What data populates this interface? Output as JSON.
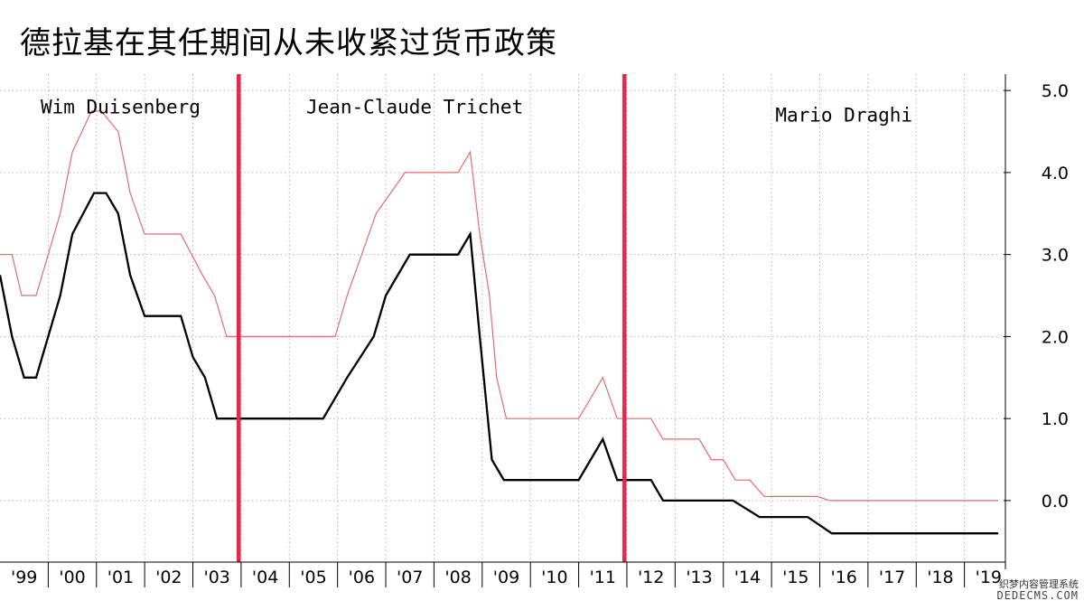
{
  "chart_data": {
    "type": "line",
    "title": "德拉基在其任期间从未收紧过货币政策",
    "xlabel": "",
    "ylabel": "",
    "x_tick_labels": [
      "'99",
      "'00",
      "'01",
      "'02",
      "'03",
      "'04",
      "'05",
      "'06",
      "'07",
      "'08",
      "'09",
      "'10",
      "'11",
      "'12",
      "'13",
      "'14",
      "'15",
      "'16",
      "'17",
      "'18",
      "'19"
    ],
    "x_range": [
      1999.0,
      2019.7
    ],
    "y_ticks": [
      0,
      1,
      2,
      3,
      4,
      5
    ],
    "y_tick_labels": [
      "0.0",
      "1.0",
      "2.0",
      "3.0",
      "4.0",
      "5.0"
    ],
    "ylim": [
      -0.75,
      5.2
    ],
    "y_axis_side": "right",
    "grid": true,
    "legend": "none",
    "annotations": [
      {
        "text": "Wim Duisenberg",
        "x": 2001.5,
        "y": 4.8
      },
      {
        "text": "Jean-Claude Trichet",
        "x": 2007.6,
        "y": 4.8
      },
      {
        "text": "Mario Draghi",
        "x": 2016.5,
        "y": 4.7
      }
    ],
    "term_dividers": [
      {
        "x": 2003.95,
        "color": "#e8274b"
      },
      {
        "x": 2011.95,
        "color": "#e8274b"
      }
    ],
    "series": [
      {
        "color": "#e86a6a",
        "points": [
          [
            1999.0,
            3.0
          ],
          [
            1999.25,
            3.0
          ],
          [
            1999.45,
            2.5
          ],
          [
            1999.75,
            2.5
          ],
          [
            2000.25,
            3.5
          ],
          [
            2000.5,
            4.25
          ],
          [
            2000.9,
            4.75
          ],
          [
            2001.1,
            4.75
          ],
          [
            2001.45,
            4.5
          ],
          [
            2001.7,
            3.75
          ],
          [
            2002.0,
            3.25
          ],
          [
            2002.75,
            3.25
          ],
          [
            2003.2,
            2.75
          ],
          [
            2003.45,
            2.5
          ],
          [
            2003.7,
            2.0
          ],
          [
            2005.95,
            2.0
          ],
          [
            2006.2,
            2.5
          ],
          [
            2006.5,
            3.0
          ],
          [
            2006.8,
            3.5
          ],
          [
            2007.4,
            4.0
          ],
          [
            2008.5,
            4.0
          ],
          [
            2008.75,
            4.25
          ],
          [
            2008.95,
            3.25
          ],
          [
            2009.15,
            2.5
          ],
          [
            2009.3,
            1.5
          ],
          [
            2009.5,
            1.0
          ],
          [
            2011.0,
            1.0
          ],
          [
            2011.5,
            1.5
          ],
          [
            2011.8,
            1.0
          ],
          [
            2012.5,
            1.0
          ],
          [
            2012.75,
            0.75
          ],
          [
            2013.5,
            0.75
          ],
          [
            2013.75,
            0.5
          ],
          [
            2014.0,
            0.5
          ],
          [
            2014.25,
            0.25
          ],
          [
            2014.55,
            0.25
          ],
          [
            2014.85,
            0.05
          ],
          [
            2015.95,
            0.05
          ],
          [
            2016.2,
            0.0
          ],
          [
            2019.7,
            0.0
          ]
        ]
      },
      {
        "color": "#000000",
        "points": [
          [
            1999.0,
            2.75
          ],
          [
            1999.25,
            2.0
          ],
          [
            1999.5,
            1.5
          ],
          [
            1999.75,
            1.5
          ],
          [
            2000.25,
            2.5
          ],
          [
            2000.5,
            3.25
          ],
          [
            2000.95,
            3.75
          ],
          [
            2001.2,
            3.75
          ],
          [
            2001.45,
            3.5
          ],
          [
            2001.7,
            2.75
          ],
          [
            2002.0,
            2.25
          ],
          [
            2002.75,
            2.25
          ],
          [
            2003.0,
            1.75
          ],
          [
            2003.25,
            1.5
          ],
          [
            2003.5,
            1.0
          ],
          [
            2005.7,
            1.0
          ],
          [
            2006.2,
            1.5
          ],
          [
            2006.75,
            2.0
          ],
          [
            2007.0,
            2.5
          ],
          [
            2007.5,
            3.0
          ],
          [
            2008.5,
            3.0
          ],
          [
            2008.75,
            3.25
          ],
          [
            2008.95,
            2.0
          ],
          [
            2009.2,
            0.5
          ],
          [
            2009.45,
            0.25
          ],
          [
            2011.0,
            0.25
          ],
          [
            2011.5,
            0.75
          ],
          [
            2011.8,
            0.25
          ],
          [
            2012.5,
            0.25
          ],
          [
            2012.75,
            0.0
          ],
          [
            2014.2,
            0.0
          ],
          [
            2014.75,
            -0.2
          ],
          [
            2015.75,
            -0.2
          ],
          [
            2016.25,
            -0.4
          ],
          [
            2019.7,
            -0.4
          ]
        ]
      }
    ]
  },
  "watermark": {
    "line1": "织梦内容管理系统",
    "line2": "DEDECMS.COM"
  }
}
